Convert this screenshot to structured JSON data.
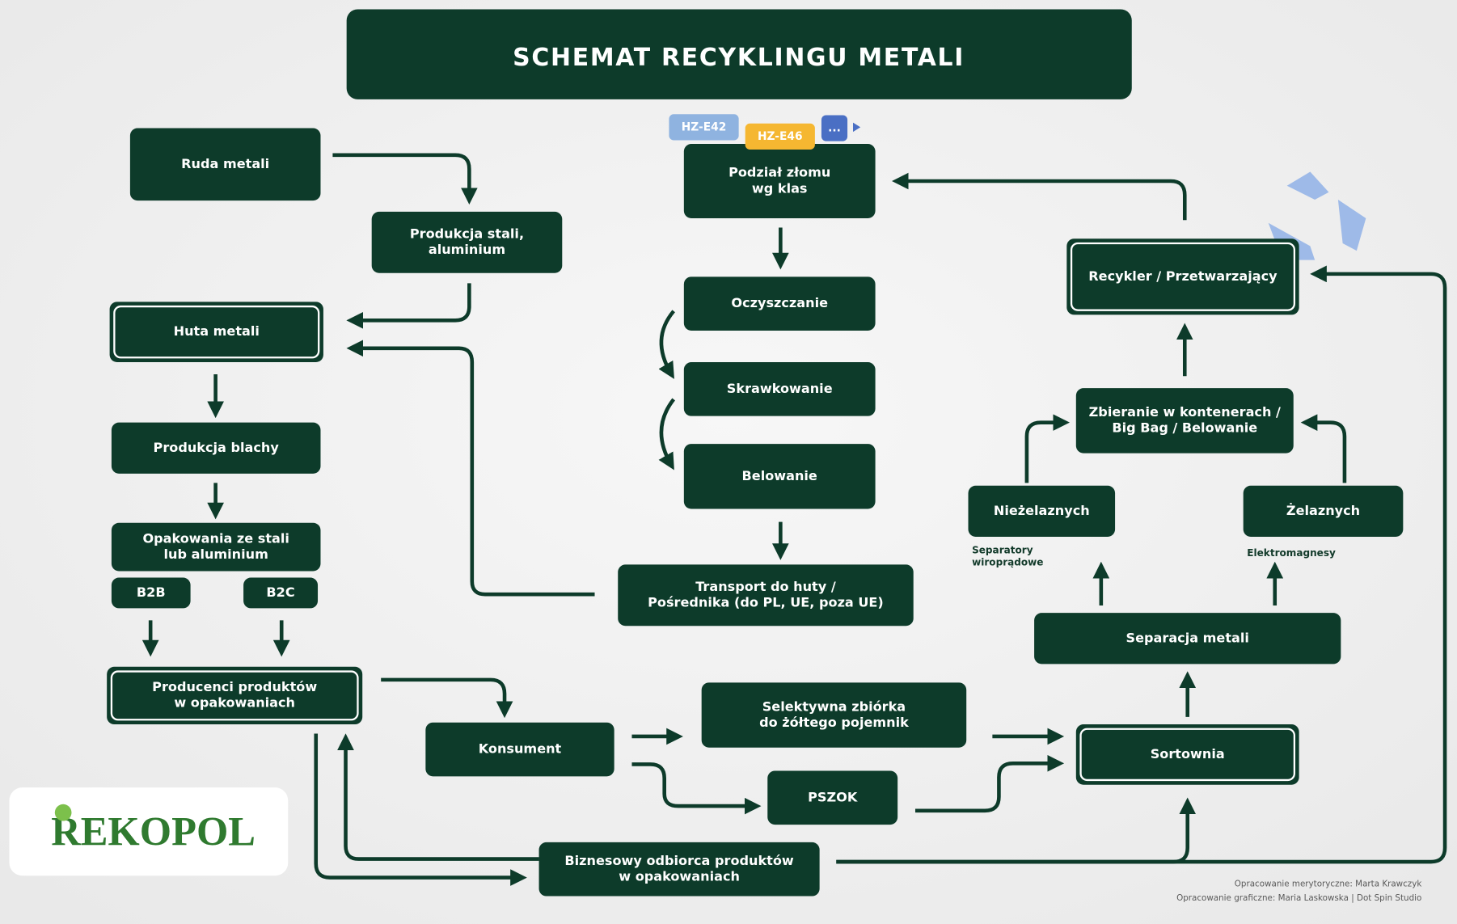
{
  "title": "SCHEMAT RECYKLINGU METALI",
  "nodes": {
    "ruda": [
      "Ruda metali"
    ],
    "produkcja_stali": [
      "Produkcja stali,",
      "aluminium"
    ],
    "huta": [
      "Huta metali"
    ],
    "blacha": [
      "Produkcja blachy"
    ],
    "opakowania": [
      "Opakowania ze stali",
      "lub aluminium"
    ],
    "b2b": [
      "B2B"
    ],
    "b2c": [
      "B2C"
    ],
    "producenci": [
      "Producenci produktów",
      "w opakowaniach"
    ],
    "konsument": [
      "Konsument"
    ],
    "selektywna": [
      "Selektywna zbiórka",
      "do żółtego pojemnik"
    ],
    "pszok": [
      "PSZOK"
    ],
    "biznesowy": [
      "Biznesowy odbiorca produktów",
      "w opakowaniach"
    ],
    "podzial": [
      "Podział złomu",
      "wg klas"
    ],
    "oczyszczanie": [
      "Oczyszczanie"
    ],
    "skrawkowanie": [
      "Skrawkowanie"
    ],
    "belowanie": [
      "Belowanie"
    ],
    "transport": [
      "Transport do huty /",
      "Pośrednika (do PL, UE, poza UE)"
    ],
    "recykler": [
      "Recykler / Przetwarzający"
    ],
    "zbieranie": [
      "Zbieranie w kontenerach /",
      "Big Bag / Belowanie"
    ],
    "niezelazne": [
      "Nieżelaznych"
    ],
    "zelazne": [
      "Żelaznych"
    ],
    "separacja": [
      "Separacja metali"
    ],
    "sortownia": [
      "Sortownia"
    ]
  },
  "tags": [
    "HZ-E42",
    "HZ-E46",
    "..."
  ],
  "captions": {
    "separatory": [
      "Separatory",
      "wiroprądowe"
    ],
    "elektromagnesy": [
      "Elektromagnesy"
    ]
  },
  "credits": [
    "Opracowanie merytoryczne: Marta Krawczyk",
    "Opracowanie graficzne: Maria Laskowska | Dot Spin Studio"
  ],
  "logo": "REKOPOL"
}
